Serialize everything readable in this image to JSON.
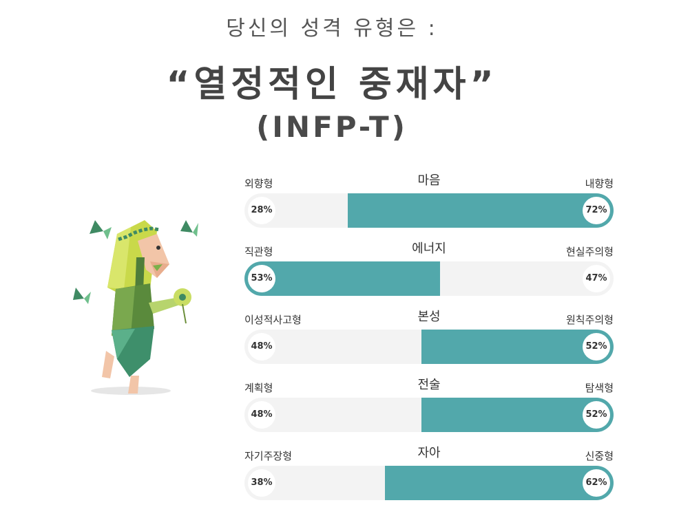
{
  "header": {
    "subtitle": "당신의 성격 유형은 :",
    "type_name": "“열정적인 중재자”",
    "type_code": "(INFP-T)"
  },
  "colors": {
    "accent": "#52a8ab",
    "track": "#f3f3f3",
    "text": "#4a4a4a"
  },
  "scales": [
    {
      "dimension": "마음",
      "left_label": "외향형",
      "right_label": "내향형",
      "left_pct": "28%",
      "right_pct": "72%",
      "left_value": 28,
      "right_value": 72,
      "dominant": "right"
    },
    {
      "dimension": "에너지",
      "left_label": "직관형",
      "right_label": "현실주의형",
      "left_pct": "53%",
      "right_pct": "47%",
      "left_value": 53,
      "right_value": 47,
      "dominant": "left"
    },
    {
      "dimension": "본성",
      "left_label": "이성적사고형",
      "right_label": "원칙주의형",
      "left_pct": "48%",
      "right_pct": "52%",
      "left_value": 48,
      "right_value": 52,
      "dominant": "right"
    },
    {
      "dimension": "전술",
      "left_label": "계획형",
      "right_label": "탐색형",
      "left_pct": "48%",
      "right_pct": "52%",
      "left_value": 48,
      "right_value": 52,
      "dominant": "right"
    },
    {
      "dimension": "자아",
      "left_label": "자기주장형",
      "right_label": "신중형",
      "left_pct": "38%",
      "right_pct": "62%",
      "left_value": 38,
      "right_value": 62,
      "dominant": "right"
    }
  ],
  "illustration": {
    "icon": "mediator-character-icon"
  }
}
